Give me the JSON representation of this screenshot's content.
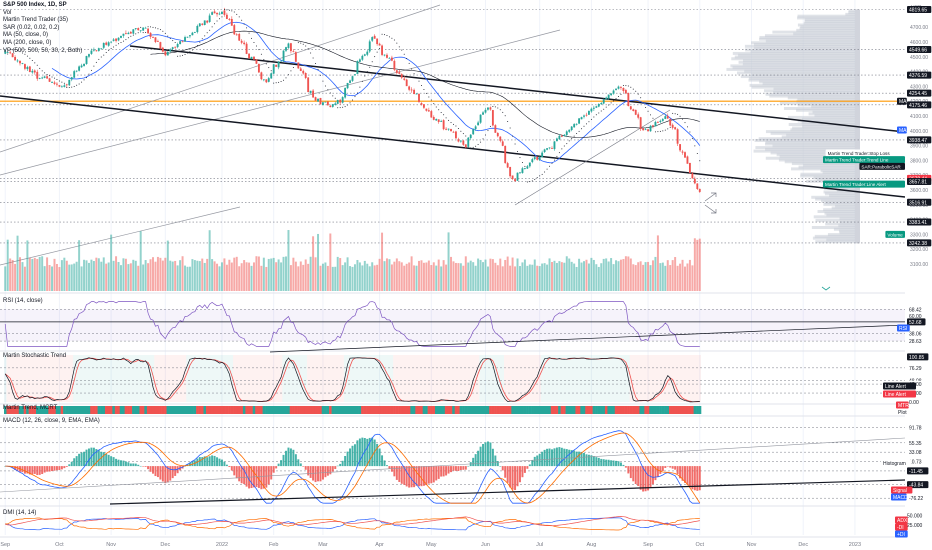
{
  "header": {
    "symbol": "S&P 500 Index, 1D, SP",
    "indicators": [
      "Vol",
      "Martin Trend Trader (35)",
      "SAR (0.02, 0.02, 0.2)",
      "MA (50, close, 0)",
      "MA (200, close, 0)",
      "VP (500, 500, 50, 30, 2, Both)"
    ],
    "currency": "USD"
  },
  "colors": {
    "up": "#26a69a",
    "down": "#ef5350",
    "ma50": "#2962ff",
    "ma200": "#131722",
    "rsi": "#7e57c2",
    "macd": "#2962ff",
    "signal": "#ff6d00",
    "orange_line": "#ff9800",
    "teal_tag": "#089981",
    "red_tag": "#f23645",
    "dark_tag": "#131722"
  },
  "price_axis": {
    "ticks": [
      "4700.00",
      "4600.00",
      "4500.00",
      "4400.00",
      "4300.00",
      "4200.00",
      "4100.00",
      "4000.00",
      "3900.00",
      "3800.00",
      "3700.00",
      "3600.00",
      "3500.00",
      "3400.00",
      "3300.00",
      "3200.00",
      "3100.00"
    ],
    "tags": [
      {
        "text": "4819.65",
        "price": 4819.65,
        "style": "dark"
      },
      {
        "text": "4549.66",
        "price": 4549.66,
        "style": "dark"
      },
      {
        "text": "4376.59",
        "price": 4376.59,
        "style": "dark"
      },
      {
        "text": "4254.45",
        "price": 4254.45,
        "style": "dark"
      },
      {
        "text": "4175.46",
        "price": 4175.46,
        "style": "dark"
      },
      {
        "text": "3938.47",
        "price": 3938.47,
        "style": "dark"
      },
      {
        "text": "3678.44",
        "price": 3678.44,
        "style": "red"
      },
      {
        "text": "3657.81",
        "price": 3657.81,
        "style": "dark"
      },
      {
        "text": "3516.91",
        "price": 3516.91,
        "style": "dark"
      },
      {
        "text": "3383.41",
        "price": 3383.41,
        "style": "dark"
      },
      {
        "text": "3242.38",
        "price": 3242.38,
        "style": "dark"
      }
    ],
    "side_tags": [
      {
        "text": "MA",
        "price": 4200,
        "style": "dark"
      },
      {
        "text": "MA",
        "price": 4005,
        "style": "blue"
      }
    ],
    "floating_labels": [
      {
        "text": "Martin Trend Trader:Stop Loss",
        "price": 3850,
        "style": "plain"
      },
      {
        "text": "Martin Trend Trader:Trend Line",
        "price": 3805,
        "style": "teal"
      },
      {
        "text": "SAR:ParabolicSAR",
        "price": 3760,
        "style": "dark"
      },
      {
        "text": "Martin Trend Trader:Line Alert",
        "price": 3640,
        "style": "teal"
      },
      {
        "text": "Volume",
        "price": 3300,
        "style": "teal"
      }
    ]
  },
  "time_axis": {
    "labels": [
      "Sep",
      "Oct",
      "Nov",
      "Dec",
      "2022",
      "Feb",
      "Mar",
      "Apr",
      "May",
      "Jun",
      "Jul",
      "Aug",
      "Sep",
      "Oct",
      "Nov",
      "Dec",
      "2023"
    ]
  },
  "panes": {
    "rsi": {
      "label": "RSI (14, close)",
      "ticks": [
        "68.42",
        "60.00",
        "52.68",
        "38.06",
        "28.63"
      ],
      "tag": "RSI"
    },
    "stoch": {
      "label": "Martin Stochastic Trend",
      "ticks": [
        "100.85",
        "76.29",
        "48.08",
        "40.00",
        "20.00",
        "0.00"
      ],
      "tags": [
        "Line Alert",
        "Line Alert",
        "MTR",
        "Plot"
      ]
    },
    "ribbon": {
      "label": "Martin Trend, MCRT"
    },
    "macd": {
      "label": "MACD (12, 26, close, 9, EMA, EMA)",
      "ticks": [
        "91.78",
        "55.35",
        "33.08",
        "10.73",
        "-11.45",
        "-43.84",
        "-76.22"
      ],
      "tags": [
        "Histogram",
        "Signal",
        "MACD"
      ]
    },
    "dmi": {
      "label": "DMI (14, 14)",
      "ticks": [
        "50.000",
        "25.000"
      ],
      "tags": [
        "ADX",
        "-DI",
        "+DI"
      ]
    }
  },
  "chart_data": [
    {
      "type": "candlestick",
      "title": "S&P 500 Index, 1D, SP",
      "ylabel": "USD",
      "ylim": [
        3100,
        4850
      ],
      "period": "Sep 2021 – Sep 2022 (daily)",
      "anchor_closes": [
        {
          "date": "2021-09-01",
          "close": 4530
        },
        {
          "date": "2021-09-20",
          "close": 4360
        },
        {
          "date": "2021-10-04",
          "close": 4300
        },
        {
          "date": "2021-10-21",
          "close": 4550
        },
        {
          "date": "2021-11-18",
          "close": 4700
        },
        {
          "date": "2021-12-01",
          "close": 4520
        },
        {
          "date": "2021-12-28",
          "close": 4790
        },
        {
          "date": "2022-01-03",
          "close": 4800
        },
        {
          "date": "2022-01-27",
          "close": 4330
        },
        {
          "date": "2022-02-09",
          "close": 4580
        },
        {
          "date": "2022-02-24",
          "close": 4200
        },
        {
          "date": "2022-03-08",
          "close": 4170
        },
        {
          "date": "2022-03-29",
          "close": 4630
        },
        {
          "date": "2022-04-12",
          "close": 4400
        },
        {
          "date": "2022-04-29",
          "close": 4130
        },
        {
          "date": "2022-05-20",
          "close": 3900
        },
        {
          "date": "2022-06-02",
          "close": 4170
        },
        {
          "date": "2022-06-16",
          "close": 3670
        },
        {
          "date": "2022-07-08",
          "close": 3900
        },
        {
          "date": "2022-08-16",
          "close": 4300
        },
        {
          "date": "2022-08-30",
          "close": 3990
        },
        {
          "date": "2022-09-12",
          "close": 4110
        },
        {
          "date": "2022-09-30",
          "close": 3585
        }
      ],
      "last_close": 3678.44
    },
    {
      "type": "line",
      "title": "RSI (14, close)",
      "ylim": [
        20,
        80
      ],
      "levels": [
        68.42,
        52.68,
        38.06,
        28.63
      ]
    },
    {
      "type": "line",
      "title": "Martin Stochastic Trend",
      "ylim": [
        0,
        105
      ],
      "levels": [
        76.29,
        48.08,
        40,
        20
      ]
    },
    {
      "type": "bar",
      "title": "MACD (12, 26, close, 9, EMA, EMA)",
      "ylim": [
        -90,
        100
      ],
      "levels": [
        91.78,
        55.35,
        33.08,
        10.73,
        -11.45,
        -43.84,
        -76.22
      ]
    },
    {
      "type": "line",
      "title": "DMI (14, 14)",
      "ylim": [
        0,
        60
      ],
      "series": [
        {
          "name": "ADX"
        },
        {
          "name": "-DI"
        },
        {
          "name": "+DI"
        }
      ]
    }
  ]
}
